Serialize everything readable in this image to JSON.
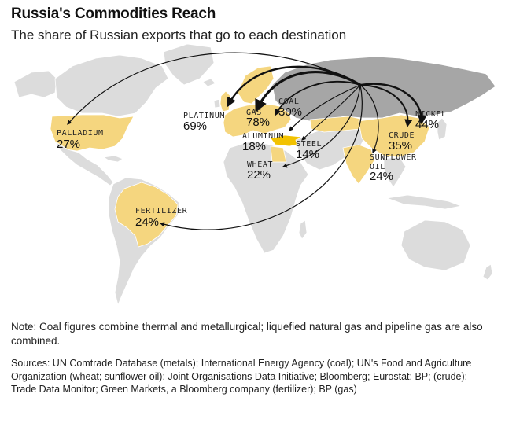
{
  "header": {
    "title": "Russia's Commodities Reach",
    "subtitle": "The share of Russian exports that go to each destination"
  },
  "colors": {
    "destination": "#f5d67f",
    "russia": "#a6a6a6",
    "land": "#dcdcdc",
    "border": "#ffffff",
    "arrow": "#111111",
    "aluminum_highlight": "#f2c200"
  },
  "flows": [
    {
      "id": "palladium",
      "name": "PALLADIUM",
      "value": "27%",
      "destination": "United States"
    },
    {
      "id": "platinum",
      "name": "PLATINUM",
      "value": "69%",
      "destination": "United Kingdom"
    },
    {
      "id": "gas",
      "name": "GAS",
      "value": "78%",
      "destination": "Europe"
    },
    {
      "id": "coal",
      "name": "COAL",
      "value": "30%",
      "destination": "Europe"
    },
    {
      "id": "aluminum",
      "name": "ALUMINUM",
      "value": "18%",
      "destination": "Turkey"
    },
    {
      "id": "steel",
      "name": "STEEL",
      "value": "14%",
      "destination": "Turkey"
    },
    {
      "id": "wheat",
      "name": "WHEAT",
      "value": "22%",
      "destination": "Egypt"
    },
    {
      "id": "fertilizer",
      "name": "FERTILIZER",
      "value": "24%",
      "destination": "Brazil"
    },
    {
      "id": "sunflower",
      "name": "SUNFLOWER OIL",
      "name_lines": [
        "SUNFLOWER",
        "OIL"
      ],
      "value": "24%",
      "destination": "India"
    },
    {
      "id": "crude",
      "name": "CRUDE",
      "value": "35%",
      "destination": "China"
    },
    {
      "id": "nickel",
      "name": "NICKEL",
      "value": "44%",
      "destination": "China"
    }
  ],
  "footer": {
    "note": "Note: Coal figures combine thermal and metallurgical; liquefied natural gas and pipeline gas are also combined.",
    "sources": "Sources: UN Comtrade Database (metals); International Energy Agency (coal); UN's Food and Agriculture Organization (wheat; sunflower oil); Joint Organisations Data Initiative; Bloomberg; Eurostat; BP; (crude); Trade Data Monitor; Green Markets, a Bloomberg company (fertilizer); BP (gas)"
  }
}
